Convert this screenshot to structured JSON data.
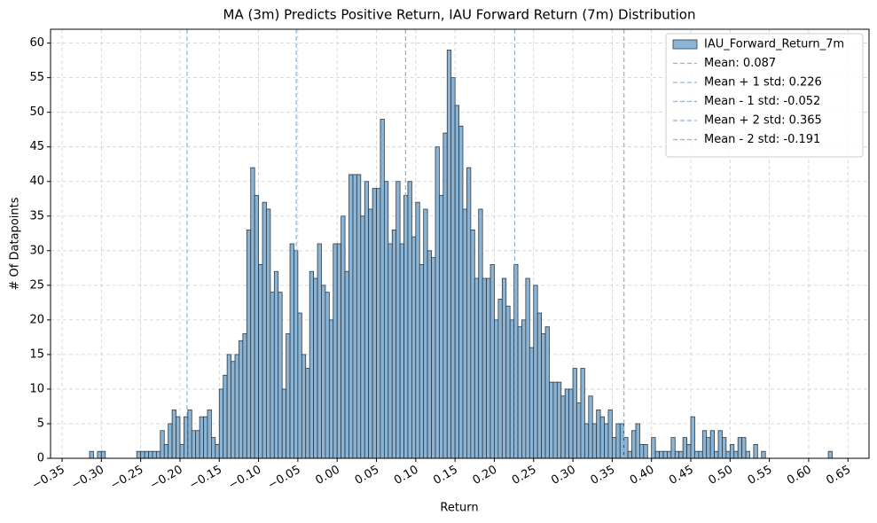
{
  "chart_data": {
    "type": "histogram",
    "title": "MA (3m) Predicts Positive Return, IAU Forward Return (7m) Distribution",
    "xlabel": "Return",
    "ylabel": "# Of Datapoints",
    "bins": [
      -0.315,
      -0.31,
      -0.305,
      -0.3,
      -0.295,
      -0.29,
      -0.285,
      -0.28,
      -0.275,
      -0.27,
      -0.265,
      -0.26,
      -0.255,
      -0.25,
      -0.245,
      -0.24,
      -0.235,
      -0.23,
      -0.225,
      -0.22,
      -0.215,
      -0.21,
      -0.205,
      -0.2,
      -0.195,
      -0.19,
      -0.185,
      -0.18,
      -0.175,
      -0.17,
      -0.165,
      -0.16,
      -0.155,
      -0.15,
      -0.145,
      -0.14,
      -0.135,
      -0.13,
      -0.125,
      -0.12,
      -0.115,
      -0.11,
      -0.105,
      -0.1,
      -0.095,
      -0.09,
      -0.085,
      -0.08,
      -0.075,
      -0.07,
      -0.065,
      -0.06,
      -0.055,
      -0.05,
      -0.045,
      -0.04,
      -0.035,
      -0.03,
      -0.025,
      -0.02,
      -0.015,
      -0.01,
      -0.005,
      0,
      0.005,
      0.01,
      0.015,
      0.02,
      0.025,
      0.03,
      0.035,
      0.04,
      0.045,
      0.05,
      0.055,
      0.06,
      0.065,
      0.07,
      0.075,
      0.08,
      0.085,
      0.09,
      0.095,
      0.1,
      0.105,
      0.11,
      0.115,
      0.12,
      0.125,
      0.13,
      0.135,
      0.14,
      0.145,
      0.15,
      0.155,
      0.16,
      0.165,
      0.17,
      0.175,
      0.18,
      0.185,
      0.19,
      0.195,
      0.2,
      0.205,
      0.21,
      0.215,
      0.22,
      0.225,
      0.23,
      0.235,
      0.24,
      0.245,
      0.25,
      0.255,
      0.26,
      0.265,
      0.27,
      0.275,
      0.28,
      0.285,
      0.29,
      0.295,
      0.3,
      0.305,
      0.31,
      0.315,
      0.32,
      0.325,
      0.33,
      0.335,
      0.34,
      0.345,
      0.35,
      0.355,
      0.36,
      0.365,
      0.37,
      0.375,
      0.38,
      0.385,
      0.39,
      0.395,
      0.4,
      0.405,
      0.41,
      0.415,
      0.42,
      0.425,
      0.43,
      0.435,
      0.44,
      0.445,
      0.45,
      0.455,
      0.46,
      0.465,
      0.47,
      0.475,
      0.48,
      0.485,
      0.49,
      0.495,
      0.5,
      0.505,
      0.51,
      0.515,
      0.52,
      0.525,
      0.53,
      0.535,
      0.54,
      0.545,
      0.55,
      0.555,
      0.56,
      0.565,
      0.57,
      0.575,
      0.58,
      0.585,
      0.59,
      0.595,
      0.6,
      0.605,
      0.61,
      0.615,
      0.62,
      0.625,
      0.63,
      0.635
    ],
    "series": [
      {
        "name": "IAU_Forward_Return_7m",
        "color": "#8bb4d4",
        "edgecolor": "#2b3a47",
        "values": [
          1,
          0,
          1,
          1,
          0,
          0,
          0,
          0,
          0,
          0,
          0,
          0,
          1,
          1,
          1,
          1,
          1,
          1,
          4,
          2,
          5,
          7,
          6,
          2,
          6,
          7,
          4,
          4,
          6,
          6,
          7,
          3,
          2,
          10,
          12,
          15,
          14,
          15,
          17,
          18,
          33,
          42,
          38,
          28,
          37,
          36,
          24,
          27,
          24,
          10,
          18,
          31,
          30,
          21,
          15,
          13,
          27,
          26,
          31,
          25,
          24,
          20,
          31,
          31,
          35,
          27,
          41,
          41,
          41,
          35,
          40,
          36,
          39,
          39,
          49,
          40,
          31,
          33,
          40,
          31,
          38,
          40,
          32,
          37,
          28,
          36,
          30,
          29,
          45,
          38,
          47,
          59,
          55,
          51,
          48,
          36,
          42,
          33,
          26,
          36,
          26,
          26,
          28,
          20,
          23,
          26,
          22,
          20,
          28,
          19,
          20,
          26,
          16,
          25,
          21,
          18,
          19,
          11,
          11,
          11,
          9,
          10,
          10,
          13,
          8,
          13,
          5,
          9,
          5,
          7,
          6,
          5,
          7,
          3,
          5,
          5,
          3,
          1,
          4,
          5,
          2,
          2,
          0,
          3,
          1,
          1,
          1,
          1,
          3,
          1,
          1,
          3,
          2,
          6,
          1,
          1,
          4,
          3,
          4,
          1,
          4,
          3,
          1,
          2,
          1,
          3,
          3,
          1,
          0,
          2,
          0,
          1,
          0,
          0,
          0,
          0,
          0,
          0,
          0,
          0,
          0,
          0,
          0,
          0,
          0,
          0,
          0,
          0,
          1,
          0
        ]
      }
    ],
    "vlines": [
      {
        "name": "Mean: 0.087",
        "value": 0.087,
        "color": "#8ab4da"
      },
      {
        "name": "Mean + 1 std: 0.226",
        "value": 0.226,
        "color": "#8ab4da"
      },
      {
        "name": "Mean - 1 std: -0.052",
        "value": -0.052,
        "color": "#8ab4da"
      },
      {
        "name": "Mean + 2 std: 0.365",
        "value": 0.365,
        "color": "#8ab4da"
      },
      {
        "name": "Mean - 2 std: -0.191",
        "value": -0.191,
        "color": "#8ab4da"
      }
    ],
    "xlim": [
      -0.3647,
      0.6768
    ],
    "ylim": [
      0,
      62
    ],
    "xticks": [
      {
        "value": -0.35,
        "label": "−0.35"
      },
      {
        "value": -0.3,
        "label": "−0.30"
      },
      {
        "value": -0.25,
        "label": "−0.25"
      },
      {
        "value": -0.2,
        "label": "−0.20"
      },
      {
        "value": -0.15,
        "label": "−0.15"
      },
      {
        "value": -0.1,
        "label": "−0.10"
      },
      {
        "value": -0.05,
        "label": "−0.05"
      },
      {
        "value": 0,
        "label": "0.00"
      },
      {
        "value": 0.05,
        "label": "0.05"
      },
      {
        "value": 0.1,
        "label": "0.10"
      },
      {
        "value": 0.15,
        "label": "0.15"
      },
      {
        "value": 0.2,
        "label": "0.20"
      },
      {
        "value": 0.25,
        "label": "0.25"
      },
      {
        "value": 0.3,
        "label": "0.30"
      },
      {
        "value": 0.35,
        "label": "0.35"
      },
      {
        "value": 0.4,
        "label": "0.40"
      },
      {
        "value": 0.45,
        "label": "0.45"
      },
      {
        "value": 0.5,
        "label": "0.50"
      },
      {
        "value": 0.55,
        "label": "0.55"
      },
      {
        "value": 0.6,
        "label": "0.60"
      },
      {
        "value": 0.65,
        "label": "0.65"
      }
    ],
    "yticks": [
      0,
      5,
      10,
      15,
      20,
      25,
      30,
      35,
      40,
      45,
      50,
      55,
      60
    ],
    "grid": true,
    "legend": "upper right"
  }
}
